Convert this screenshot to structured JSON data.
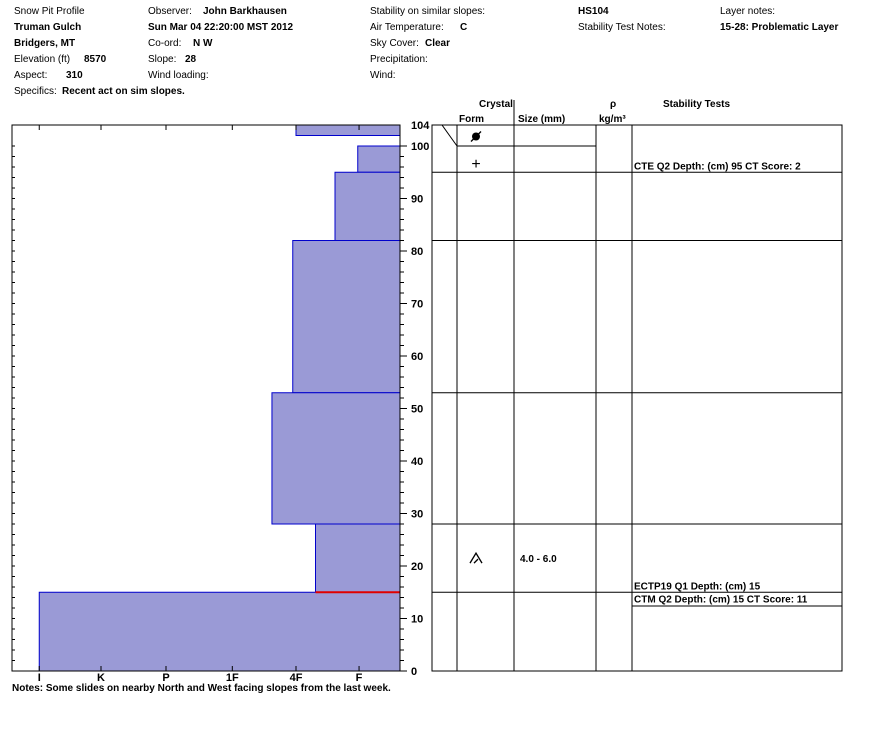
{
  "header": {
    "col1": {
      "title": "Snow Pit Profile",
      "location": "Truman Gulch",
      "region": "Bridgers, MT",
      "elevation_label": "Elevation (ft)",
      "elevation_value": "8570",
      "aspect_label": "Aspect:",
      "aspect_value": "310",
      "specifics_label": "Specifics:",
      "specifics_value": "Recent act on sim slopes."
    },
    "col2": {
      "observer_label": "Observer:",
      "observer_value": "John Barkhausen",
      "datetime": "Sun Mar 04 22:20:00 MST 2012",
      "coord_label": "Co-ord:",
      "coord_value": "N  W",
      "slope_label": "Slope:",
      "slope_value": "28",
      "wind_loading_label": "Wind loading:"
    },
    "col3": {
      "stability_label": "Stability on similar slopes:",
      "air_temp_label": "Air Temperature:",
      "air_temp_value": "C",
      "sky_label": "Sky Cover:",
      "sky_value": "Clear",
      "precip_label": "Precipitation:",
      "wind_label": "Wind:"
    },
    "col4": {
      "hs": "HS104",
      "notes_label": "Stability Test Notes:"
    },
    "col5": {
      "layer_notes_label": "Layer notes:",
      "layer_notes_value": "15-28: Problematic Layer"
    }
  },
  "table_headers": {
    "crystal": "Crystal",
    "form": "Form",
    "size": "Size (mm)",
    "rho": "ρ",
    "rho_unit": "kg/m³",
    "stability": "Stability Tests"
  },
  "notes": "Notes:  Some slides on nearby North and West facing slopes from the last week.",
  "colors": {
    "layer_fill": "#9a9ad6",
    "layer_edge": "#0000cc",
    "critical_line": "#e00000"
  },
  "chart_data": {
    "type": "hardness-profile",
    "ylim": [
      0,
      104
    ],
    "hardness_categories": [
      "I",
      "K",
      "P",
      "1F",
      "4F",
      "F"
    ],
    "y_ticks": [
      0,
      10,
      20,
      30,
      40,
      50,
      60,
      70,
      80,
      90,
      100
    ],
    "hs_label": "104",
    "layers": [
      {
        "top": 104,
        "bottom": 102,
        "hardness": 1.6
      },
      {
        "top": 100,
        "bottom": 95,
        "hardness": 0.65
      },
      {
        "top": 95,
        "bottom": 82,
        "hardness": 1.0
      },
      {
        "top": 82,
        "bottom": 53,
        "hardness": 1.65
      },
      {
        "top": 53,
        "bottom": 28,
        "hardness": 1.97
      },
      {
        "top": 28,
        "bottom": 15,
        "hardness": 1.3
      },
      {
        "top": 15,
        "bottom": 0,
        "hardness": 5.55
      }
    ],
    "critical_layer_depth": 15,
    "layer_boundaries": [
      100,
      95,
      82,
      53,
      28,
      15
    ],
    "crystals": [
      {
        "depth": 102,
        "form": "graupel-icon",
        "symbol": "●",
        "size": ""
      },
      {
        "depth": 97,
        "form": "new-snow-icon",
        "symbol": "+",
        "size": ""
      },
      {
        "depth": 21.5,
        "form": "depth-hoar-icon",
        "symbol": "^",
        "size": "4.0 - 6.0"
      }
    ],
    "stability_tests": [
      {
        "depth": 95,
        "text": "CTE Q2 Depth: (cm) 95 CT Score: 2"
      },
      {
        "depth": 15,
        "text": "ECTP19 Q1 Depth: (cm) 15"
      },
      {
        "depth": 15,
        "text": "CTM Q2 Depth: (cm) 15 CT Score: 11"
      }
    ]
  }
}
